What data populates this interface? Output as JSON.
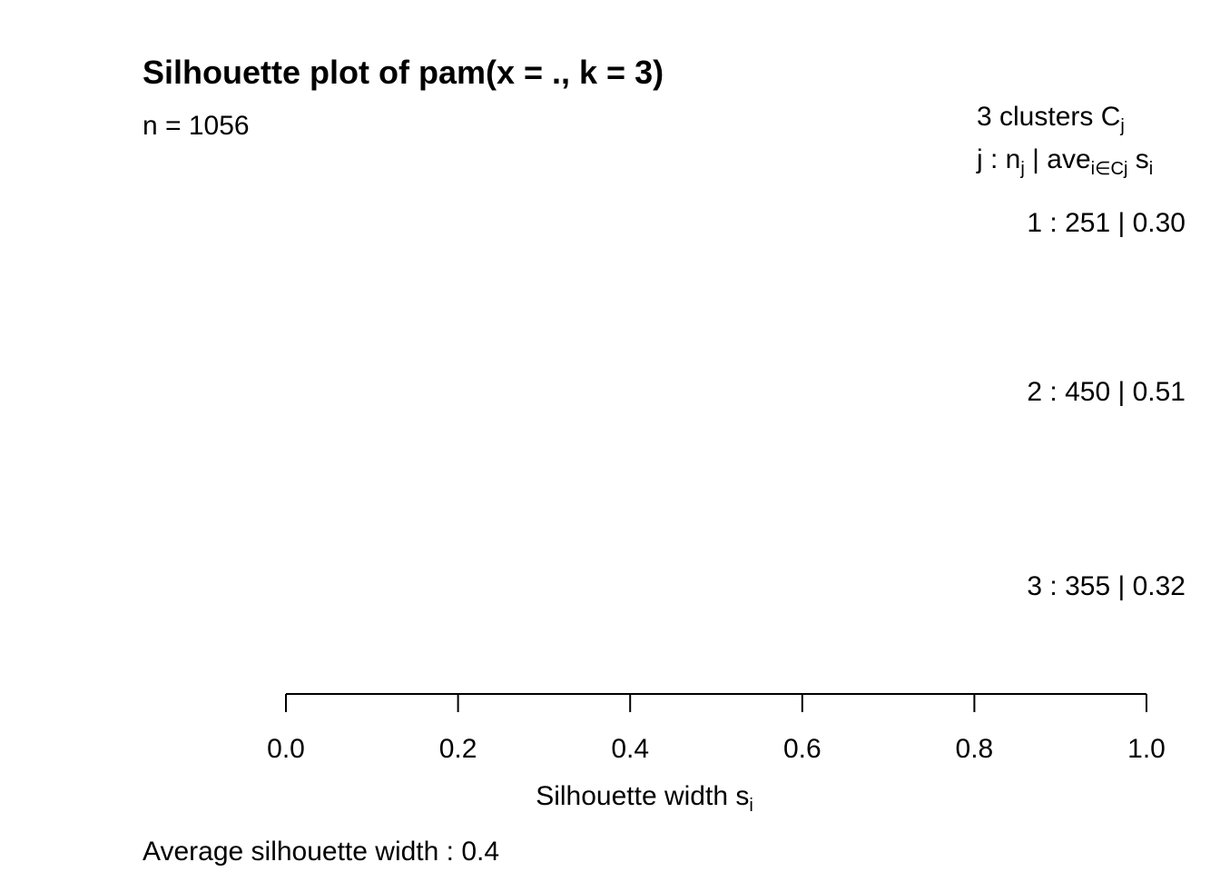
{
  "title": "Silhouette plot of pam(x = ., k = 3)",
  "subtitle": "n = 1056",
  "legend": {
    "heading_prefix": "3  clusters  C",
    "heading_sub": "j",
    "colhead_j": "j :  n",
    "colhead_j_sub": "j",
    "colhead_ave": " | ave",
    "colhead_ave_sub": "i∈Cj",
    "colhead_s": "  s",
    "colhead_s_sub": "i"
  },
  "footer": "Average silhouette width :  0.4",
  "chart_data": {
    "type": "bar",
    "orientation": "horizontal",
    "title": "Silhouette plot of pam(x = ., k = 3)",
    "subtitle": "n = 1056",
    "xlabel": "Silhouette width s",
    "xlabel_sub": "i",
    "xlim": [
      0,
      1
    ],
    "xticks": [
      "0.0",
      "0.2",
      "0.4",
      "0.6",
      "0.8",
      "1.0"
    ],
    "clusters": [
      {
        "label": "1 :   251  |  0.30",
        "j": 1,
        "n": 251,
        "avg_width": 0.3
      },
      {
        "label": "2 :   450  |  0.51",
        "j": 2,
        "n": 450,
        "avg_width": 0.51
      },
      {
        "label": "3 :   355  |  0.32",
        "j": 3,
        "n": 355,
        "avg_width": 0.32
      }
    ],
    "average_silhouette_width": 0.4,
    "bar_color": "#000000"
  }
}
